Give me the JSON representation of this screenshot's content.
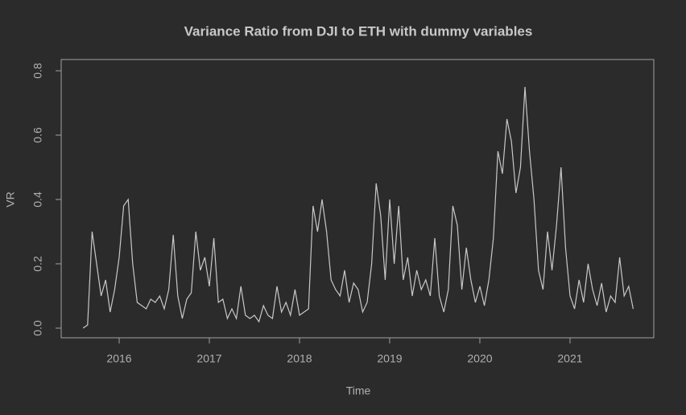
{
  "chart_data": {
    "type": "line",
    "title": "Variance Ratio from DJI to ETH with dummy variables",
    "x_label": "Time",
    "y_label": "VR",
    "x": [
      2015.6,
      2015.65,
      2015.7,
      2015.75,
      2015.8,
      2015.85,
      2015.9,
      2015.95,
      2016.0,
      2016.05,
      2016.1,
      2016.15,
      2016.2,
      2016.25,
      2016.3,
      2016.35,
      2016.4,
      2016.45,
      2016.5,
      2016.55,
      2016.6,
      2016.65,
      2016.7,
      2016.75,
      2016.8,
      2016.85,
      2016.9,
      2016.95,
      2017.0,
      2017.05,
      2017.1,
      2017.15,
      2017.2,
      2017.25,
      2017.3,
      2017.35,
      2017.4,
      2017.45,
      2017.5,
      2017.55,
      2017.6,
      2017.65,
      2017.7,
      2017.75,
      2017.8,
      2017.85,
      2017.9,
      2017.95,
      2018.0,
      2018.05,
      2018.1,
      2018.15,
      2018.2,
      2018.25,
      2018.3,
      2018.35,
      2018.4,
      2018.45,
      2018.5,
      2018.55,
      2018.6,
      2018.65,
      2018.7,
      2018.75,
      2018.8,
      2018.85,
      2018.9,
      2018.95,
      2019.0,
      2019.05,
      2019.1,
      2019.15,
      2019.2,
      2019.25,
      2019.3,
      2019.35,
      2019.4,
      2019.45,
      2019.5,
      2019.55,
      2019.6,
      2019.65,
      2019.7,
      2019.75,
      2019.8,
      2019.85,
      2019.9,
      2019.95,
      2020.0,
      2020.05,
      2020.1,
      2020.15,
      2020.2,
      2020.25,
      2020.3,
      2020.35,
      2020.4,
      2020.45,
      2020.5,
      2020.55,
      2020.6,
      2020.65,
      2020.7,
      2020.75,
      2020.8,
      2020.85,
      2020.9,
      2020.95,
      2021.0,
      2021.05,
      2021.1,
      2021.15,
      2021.2,
      2021.25,
      2021.3,
      2021.35,
      2021.4,
      2021.45,
      2021.5,
      2021.55,
      2021.6,
      2021.65,
      2021.7
    ],
    "series": [
      {
        "name": "VR",
        "color": "#c8c8c8",
        "values": [
          0.0,
          0.01,
          0.3,
          0.2,
          0.1,
          0.15,
          0.05,
          0.12,
          0.22,
          0.38,
          0.4,
          0.2,
          0.08,
          0.07,
          0.06,
          0.09,
          0.08,
          0.1,
          0.06,
          0.12,
          0.29,
          0.1,
          0.03,
          0.09,
          0.11,
          0.3,
          0.18,
          0.22,
          0.13,
          0.28,
          0.08,
          0.09,
          0.03,
          0.06,
          0.03,
          0.13,
          0.04,
          0.03,
          0.04,
          0.02,
          0.07,
          0.04,
          0.03,
          0.13,
          0.05,
          0.08,
          0.04,
          0.12,
          0.04,
          0.05,
          0.06,
          0.38,
          0.3,
          0.4,
          0.3,
          0.15,
          0.12,
          0.1,
          0.18,
          0.08,
          0.14,
          0.12,
          0.05,
          0.08,
          0.2,
          0.45,
          0.35,
          0.15,
          0.4,
          0.2,
          0.38,
          0.15,
          0.22,
          0.1,
          0.18,
          0.12,
          0.15,
          0.1,
          0.28,
          0.1,
          0.05,
          0.12,
          0.38,
          0.32,
          0.12,
          0.25,
          0.15,
          0.08,
          0.13,
          0.07,
          0.15,
          0.28,
          0.55,
          0.48,
          0.65,
          0.58,
          0.42,
          0.5,
          0.75,
          0.55,
          0.4,
          0.18,
          0.12,
          0.3,
          0.18,
          0.32,
          0.5,
          0.25,
          0.1,
          0.06,
          0.15,
          0.08,
          0.2,
          0.12,
          0.07,
          0.14,
          0.05,
          0.1,
          0.08,
          0.22,
          0.1,
          0.13,
          0.06
        ]
      }
    ],
    "xlim": [
      2015.357,
      2021.929
    ],
    "xticks": [
      2016,
      2017,
      2018,
      2019,
      2020,
      2021
    ],
    "ylim": [
      -0.03,
      0.835
    ],
    "yticks": [
      {
        "value": 0,
        "label": "0.0"
      },
      0.2,
      0.4,
      0.6,
      0.8
    ]
  }
}
